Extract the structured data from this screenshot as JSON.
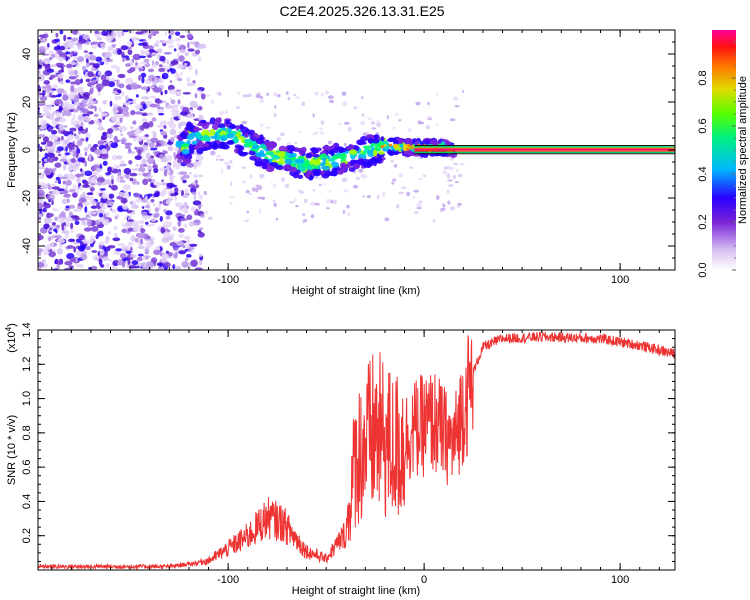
{
  "title": "C2E4.2025.326.13.31.E25",
  "chart_data": [
    {
      "type": "heatmap",
      "name": "spectrogram",
      "xlabel": "Height of straight line (km)",
      "ylabel": "Frequency (Hz)",
      "xlim": [
        -197,
        128
      ],
      "ylim": [
        -50,
        50
      ],
      "x_ticks": [
        -100,
        100
      ],
      "x_tick_labels": [
        "-100",
        "100"
      ],
      "y_ticks": [
        -40,
        -20,
        0,
        20,
        40
      ],
      "y_tick_labels": [
        "-40",
        "-20",
        "0",
        "20",
        "40"
      ],
      "colorbar": {
        "label": "Normalized spectral amplitude",
        "range": [
          0,
          1
        ],
        "ticks": [
          0.0,
          0.2,
          0.4,
          0.6,
          0.8
        ],
        "tick_labels": [
          "0.0",
          "0.2",
          "0.4",
          "0.6",
          "0.8"
        ]
      },
      "description_points": [
        {
          "x": -120,
          "y": 5
        },
        {
          "x": -100,
          "y": 7
        },
        {
          "x": -90,
          "y": 3
        },
        {
          "x": -80,
          "y": -2
        },
        {
          "x": -70,
          "y": -4
        },
        {
          "x": -60,
          "y": -6
        },
        {
          "x": -50,
          "y": -5
        },
        {
          "x": -40,
          "y": -3
        },
        {
          "x": -30,
          "y": -1
        },
        {
          "x": -20,
          "y": 2
        },
        {
          "x": -10,
          "y": 1
        },
        {
          "x": 0,
          "y": 1
        },
        {
          "x": 15,
          "y": 1
        }
      ],
      "carrier_line": {
        "x_start": -5,
        "x_end": 128,
        "frequency": 0
      }
    },
    {
      "type": "line",
      "name": "snr",
      "xlabel": "Height of straight line (km)",
      "ylabel": "SNR (10 * v/v)",
      "y_multiplier": "(x10",
      "y_multiplier_exp": "4",
      "y_multiplier_close": ")",
      "xlim": [
        -197,
        128
      ],
      "ylim": [
        0,
        1.4
      ],
      "x_ticks": [
        -100,
        0,
        100
      ],
      "x_tick_labels": [
        "-100",
        "0",
        "100"
      ],
      "y_ticks": [
        0.2,
        0.4,
        0.6,
        0.8,
        1.0,
        1.2,
        1.4
      ],
      "y_tick_labels": [
        "0.2",
        "0.4",
        "0.6",
        "0.8",
        "1.0",
        "1.2",
        "1.4"
      ],
      "color": "#ee3333",
      "envelope": [
        {
          "x": -197,
          "y": 0.02
        },
        {
          "x": -130,
          "y": 0.02
        },
        {
          "x": -110,
          "y": 0.05
        },
        {
          "x": -90,
          "y": 0.18
        },
        {
          "x": -80,
          "y": 0.28
        },
        {
          "x": -72,
          "y": 0.25
        },
        {
          "x": -60,
          "y": 0.1
        },
        {
          "x": -50,
          "y": 0.06
        },
        {
          "x": -40,
          "y": 0.2
        },
        {
          "x": -35,
          "y": 0.7
        },
        {
          "x": -25,
          "y": 0.85
        },
        {
          "x": -15,
          "y": 0.75
        },
        {
          "x": -5,
          "y": 0.85
        },
        {
          "x": 5,
          "y": 0.9
        },
        {
          "x": 15,
          "y": 0.75
        },
        {
          "x": 20,
          "y": 1.0
        },
        {
          "x": 30,
          "y": 1.3
        },
        {
          "x": 40,
          "y": 1.35
        },
        {
          "x": 60,
          "y": 1.36
        },
        {
          "x": 90,
          "y": 1.35
        },
        {
          "x": 110,
          "y": 1.31
        },
        {
          "x": 128,
          "y": 1.26
        }
      ]
    }
  ],
  "colors": {
    "rainbow": [
      "#ffffff",
      "#c8a8f0",
      "#7722dd",
      "#2200ff",
      "#00ccff",
      "#00ff66",
      "#aaff00",
      "#ffaa00",
      "#ff2200",
      "#ff0099"
    ]
  }
}
